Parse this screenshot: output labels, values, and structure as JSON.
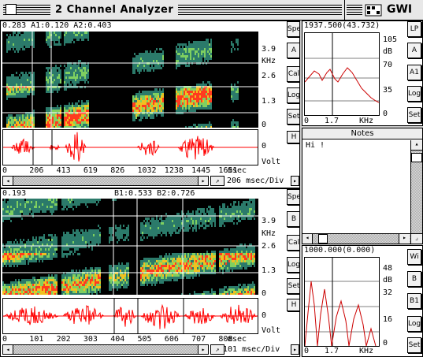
{
  "window": {
    "title": "2 Channel Analyzer",
    "brand": "GWI"
  },
  "channel_a": {
    "cursor_readout": "0.283  A1:0.120  A2:0.403",
    "freq_ticks": [
      "3.9",
      "2.6",
      "1.3",
      "0"
    ],
    "freq_unit": "KHz",
    "buttons": [
      "Spe",
      "A",
      "Cal",
      "Log",
      "Set"
    ],
    "wave_zero": "0",
    "wave_unit": "Volt",
    "wave_button": "H",
    "time_ticks": [
      "0",
      "206",
      "413",
      "619",
      "826",
      "1032",
      "1238",
      "1445",
      "1651"
    ],
    "time_unit": "msec",
    "time_scale": "206 msec/Div"
  },
  "channel_b": {
    "cursor_readout_left": "0.193",
    "cursor_readout_right": "B1:0.533  B2:0.726",
    "freq_ticks": [
      "3.9",
      "2.6",
      "1.3",
      "0"
    ],
    "freq_unit": "KHz",
    "buttons": [
      "Spe",
      "B",
      "Cal",
      "Log",
      "Set"
    ],
    "wave_zero": "0",
    "wave_unit": "Volt",
    "wave_button": "H",
    "time_ticks": [
      "0",
      "101",
      "202",
      "303",
      "404",
      "505",
      "606",
      "707",
      "808"
    ],
    "time_unit": "msec",
    "time_scale": "101 msec/Div"
  },
  "spectrum_a": {
    "readout": "1937.500(43.732)",
    "y_ticks": [
      "105",
      "70",
      "35",
      "0"
    ],
    "y_unit": "dB",
    "x_ticks": [
      "0",
      "1.7"
    ],
    "x_unit": "KHz",
    "buttons": [
      "LP",
      "A",
      "A1",
      "Log",
      "Set"
    ]
  },
  "notes": {
    "title": "Notes",
    "text": "Hi !"
  },
  "spectrum_b": {
    "readout": "1000.000(0.000)",
    "y_ticks": [
      "48",
      "32",
      "16",
      "0"
    ],
    "y_unit": "dB",
    "x_ticks": [
      "0",
      "1.7"
    ],
    "x_unit": "KHz",
    "buttons": [
      "Wi",
      "B",
      "B1",
      "Log",
      "Set"
    ]
  },
  "colors": {
    "waveform": "#ff0000",
    "spectrum_line": "#cc0000",
    "spectrogram_bg": "#000000"
  }
}
